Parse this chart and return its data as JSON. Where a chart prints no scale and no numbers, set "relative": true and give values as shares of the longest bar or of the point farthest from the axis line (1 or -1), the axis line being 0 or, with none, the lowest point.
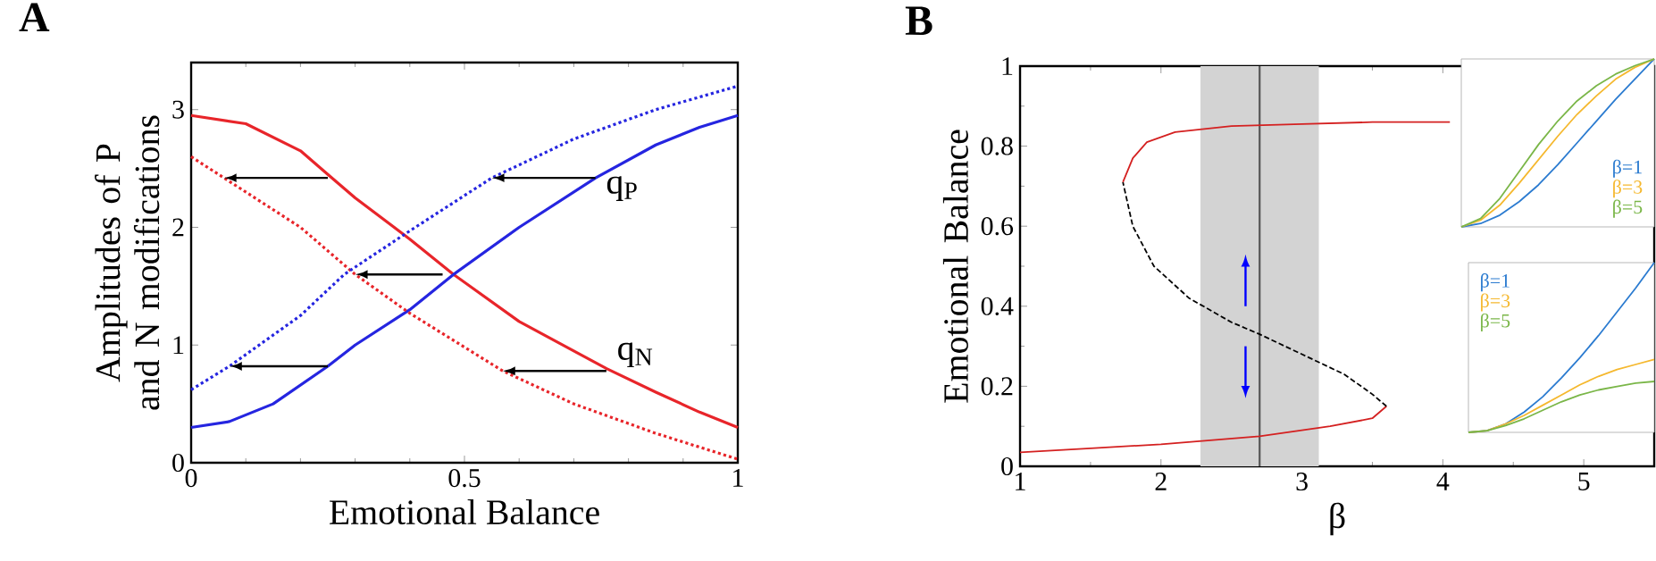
{
  "chart_data": [
    {
      "type": "line",
      "title": "A",
      "xlabel": "Emotional Balance",
      "ylabel": "Amplitudes of P and N modifications",
      "xlim": [
        0,
        1
      ],
      "ylim": [
        0,
        3.4
      ],
      "xticks": [
        0,
        0.5,
        1
      ],
      "yticks": [
        0,
        1,
        2,
        3
      ],
      "series": [
        {
          "color": "#e8252a",
          "line_style": "solid",
          "x": [
            0,
            0.1,
            0.2,
            0.25,
            0.3,
            0.4,
            0.48,
            0.6,
            0.7,
            0.76,
            0.85,
            0.93,
            1
          ],
          "values": [
            2.95,
            2.88,
            2.65,
            2.45,
            2.25,
            1.9,
            1.6,
            1.2,
            0.95,
            0.8,
            0.6,
            0.43,
            0.3
          ]
        },
        {
          "color": "#2525e0",
          "line_style": "solid",
          "x": [
            0,
            0.07,
            0.15,
            0.25,
            0.3,
            0.4,
            0.48,
            0.6,
            0.74,
            0.85,
            0.93,
            1
          ],
          "values": [
            0.3,
            0.35,
            0.5,
            0.82,
            1.0,
            1.3,
            1.6,
            2.0,
            2.42,
            2.7,
            2.85,
            2.95
          ]
        },
        {
          "color": "#e8252a",
          "line_style": "dotted",
          "x": [
            0,
            0.06,
            0.2,
            0.3,
            0.4,
            0.57,
            0.7,
            0.85,
            1
          ],
          "values": [
            2.6,
            2.42,
            2.0,
            1.6,
            1.27,
            0.78,
            0.5,
            0.25,
            0.03
          ]
        },
        {
          "color": "#2525e0",
          "line_style": "dotted",
          "x": [
            0,
            0.07,
            0.2,
            0.28,
            0.4,
            0.55,
            0.7,
            0.85,
            1
          ],
          "values": [
            0.62,
            0.82,
            1.25,
            1.6,
            1.97,
            2.42,
            2.75,
            3.0,
            3.2
          ]
        }
      ],
      "annotations": [
        {
          "text": "q$_{P}$",
          "x": 0.55,
          "y": 2.42
        },
        {
          "text": "q$_{N}$",
          "x": 0.57,
          "y": 0.78
        }
      ]
    },
    {
      "type": "line",
      "title": "B",
      "xlabel": "β",
      "ylabel": "Emotional Balance",
      "xlim": [
        1,
        5.5
      ],
      "ylim": [
        0,
        1
      ],
      "xticks": [
        1,
        2,
        3,
        4,
        5
      ],
      "yticks": [
        0,
        0.2,
        0.4,
        0.6,
        0.8,
        1
      ],
      "series": [
        {
          "color": "#d42020",
          "line_style": "solid",
          "x": [
            1,
            1.5,
            2.0,
            2.7,
            3.0,
            3.2,
            3.5,
            3.6
          ],
          "values": [
            0.035,
            0.045,
            0.055,
            0.075,
            0.09,
            0.1,
            0.12,
            0.15
          ]
        },
        {
          "color": "#000000",
          "line_style": "dashed",
          "x": [
            3.6,
            3.5,
            3.3,
            3.0,
            2.7,
            2.5,
            2.2,
            1.95,
            1.8,
            1.73
          ],
          "values": [
            0.15,
            0.18,
            0.23,
            0.28,
            0.33,
            0.36,
            0.42,
            0.5,
            0.6,
            0.71
          ]
        },
        {
          "color": "#d42020",
          "line_style": "solid",
          "x": [
            1.73,
            1.8,
            1.9,
            2.1,
            2.5,
            3.0,
            3.5,
            4.05
          ],
          "values": [
            0.71,
            0.77,
            0.81,
            0.835,
            0.85,
            0.855,
            0.86,
            0.86
          ]
        }
      ],
      "bands": [
        {
          "axis": "x",
          "from": 2.28,
          "to": 3.12,
          "color": "#d3d3d3"
        }
      ],
      "ref_lines": [
        {
          "axis": "x",
          "value": 2.7,
          "color": "#555555"
        }
      ]
    },
    {
      "type": "line",
      "relative": true,
      "legend": "bottom right",
      "categories": [
        null,
        null,
        null,
        null,
        null,
        null,
        null,
        null,
        null,
        null,
        null
      ],
      "series": [
        {
          "name": "β=1",
          "color": "#2b7bd0",
          "values": [
            0,
            0.02,
            0.07,
            0.15,
            0.25,
            0.37,
            0.5,
            0.63,
            0.76,
            0.88,
            1
          ]
        },
        {
          "name": "β=3",
          "color": "#f5b82e",
          "values": [
            0,
            0.04,
            0.13,
            0.26,
            0.4,
            0.54,
            0.67,
            0.78,
            0.88,
            0.95,
            1
          ]
        },
        {
          "name": "β=5",
          "color": "#7ab648",
          "values": [
            0,
            0.05,
            0.17,
            0.33,
            0.49,
            0.63,
            0.75,
            0.84,
            0.91,
            0.96,
            1
          ]
        }
      ]
    },
    {
      "type": "line",
      "relative": true,
      "legend": "top left",
      "categories": [
        null,
        null,
        null,
        null,
        null,
        null,
        null,
        null,
        null,
        null,
        null
      ],
      "series": [
        {
          "name": "β=1",
          "color": "#2b7bd0",
          "values": [
            0,
            0.01,
            0.05,
            0.12,
            0.21,
            0.32,
            0.44,
            0.57,
            0.71,
            0.85,
            1
          ]
        },
        {
          "name": "β=3",
          "color": "#f5b82e",
          "values": [
            0,
            0.01,
            0.05,
            0.1,
            0.16,
            0.22,
            0.28,
            0.33,
            0.37,
            0.4,
            0.43
          ]
        },
        {
          "name": "β=5",
          "color": "#7ab648",
          "values": [
            0,
            0.01,
            0.04,
            0.08,
            0.13,
            0.18,
            0.22,
            0.25,
            0.27,
            0.29,
            0.3
          ]
        }
      ]
    }
  ]
}
